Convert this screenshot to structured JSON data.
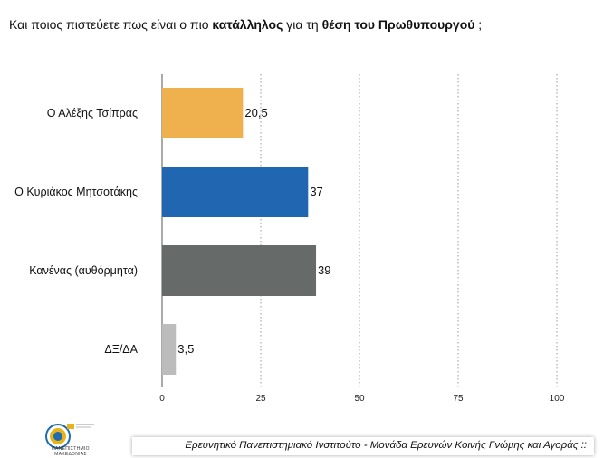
{
  "title": {
    "part1": "Και ποιος πιστεύετε πως είναι ο πιο ",
    "bold1": "κατάλληλος",
    "part2": " για τη ",
    "bold2": "θέση του Πρωθυπουργού",
    "part3": " ;"
  },
  "chart_data": {
    "type": "bar",
    "orientation": "horizontal",
    "categories": [
      "Ο Αλέξης Τσίπρας",
      "Ο Κυριάκος Μητσοτάκης",
      "Κανένας (αυθόρμητα)",
      "ΔΞ/ΔΑ"
    ],
    "values": [
      20.5,
      37,
      39,
      3.5
    ],
    "value_labels": [
      "20,5",
      "37",
      "39",
      "3,5"
    ],
    "colors": [
      "#EEB14E",
      "#2166B0",
      "#666A68",
      "#BBBCBB"
    ],
    "xlim": [
      0,
      100
    ],
    "xticks": [
      0,
      25,
      50,
      75,
      100
    ],
    "grid": "vertical dotted",
    "title": "",
    "xlabel": "",
    "ylabel": ""
  },
  "footer": {
    "text": "Ερευνητικό Πανεπιστημιακό Ινστιτούτο - Μονάδα Ερευνών Κοινής Γνώμης και Αγοράς ::"
  },
  "logo": {
    "line1": "ΠΑΝΕΠΙΣΤΗΜΙΟ",
    "line2": "ΜΑΚΕΔΟΝΙΑΣ",
    "primary_color": "#1E6BB0",
    "accent_color": "#E7B21C"
  }
}
